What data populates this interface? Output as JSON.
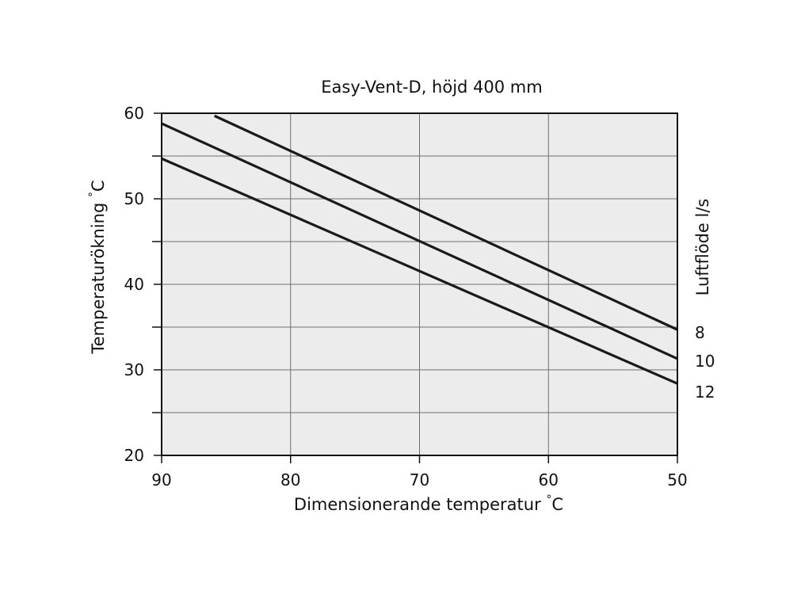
{
  "chart_data": {
    "type": "line",
    "title": "Easy-Vent-D, höjd 400 mm",
    "xlabel": "Dimensionerande temperatur",
    "xlabel_unit": "C",
    "ylabel": "Temperaturökning",
    "ylabel_unit": "C",
    "degree_sign": "°",
    "right_axis_label": "Luftflöde l/s",
    "xlim": [
      90,
      50
    ],
    "ylim": [
      20,
      60
    ],
    "x_reversed": true,
    "x_ticks": [
      90,
      80,
      70,
      60,
      50
    ],
    "y_ticks": [
      20,
      30,
      40,
      50,
      60
    ],
    "grid": true,
    "series": [
      {
        "name": "8",
        "x": [
          85.9,
          50
        ],
        "y": [
          59.7,
          34.7
        ]
      },
      {
        "name": "10",
        "x": [
          90,
          50
        ],
        "y": [
          58.8,
          31.3
        ]
      },
      {
        "name": "12",
        "x": [
          90,
          50
        ],
        "y": [
          54.7,
          28.4
        ]
      }
    ],
    "colors": {
      "line": "#1a1a1a",
      "plot_background": "#ececec",
      "grid": "#6e6e6e"
    }
  }
}
